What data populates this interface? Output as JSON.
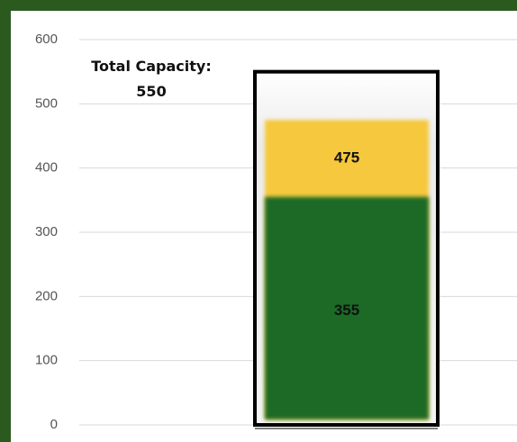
{
  "chart_data": {
    "type": "bar",
    "annotation": "Total Capacity: 550",
    "series": [
      {
        "color": "#f7f7f7",
        "values": [
          550
        ]
      },
      {
        "color": "#f5c83c",
        "values": [
          475
        ]
      },
      {
        "color": "#1c6a28",
        "values": [
          355
        ]
      }
    ],
    "ylim": [
      0,
      600
    ],
    "yticks": [
      0,
      100,
      200,
      300,
      400,
      500,
      600
    ],
    "grid": true
  }
}
